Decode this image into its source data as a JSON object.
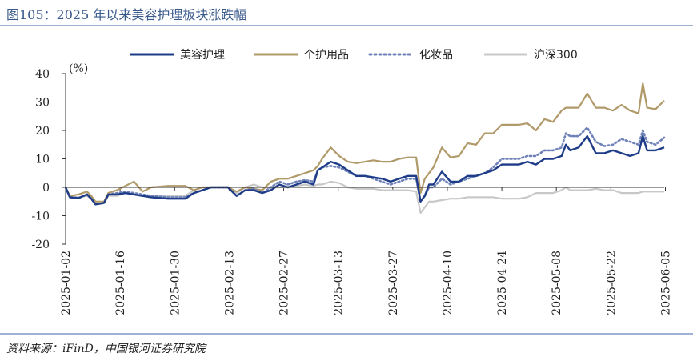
{
  "header": {
    "title": "图105：2025 年以来美容护理板块涨跌幅"
  },
  "footer": {
    "source": "资料来源：iFinD，中国银河证券研究院"
  },
  "chart_data": {
    "type": "line",
    "ylabel": "(%)",
    "ylim": [
      -20,
      40
    ],
    "yticks": [
      40,
      30,
      20,
      10,
      0,
      -10,
      -20
    ],
    "xlabels": [
      "2025-01-02",
      "2025-01-16",
      "2025-01-30",
      "2025-02-13",
      "2025-02-27",
      "2025-03-13",
      "2025-03-27",
      "2025-04-10",
      "2025-04-24",
      "2025-05-08",
      "2025-05-22",
      "2025-06-05"
    ],
    "legend_position": "top",
    "colors": {
      "neg_tick": "#cc0000",
      "axis": "#333333"
    },
    "series": [
      {
        "name": "美容护理",
        "color": "#1f3c88",
        "style": "solid",
        "points": [
          [
            0,
            0
          ],
          [
            0.5,
            -3.5
          ],
          [
            1.5,
            -3.8
          ],
          [
            2.5,
            -2.5
          ],
          [
            3,
            -4
          ],
          [
            3.5,
            -6
          ],
          [
            4.5,
            -5.5
          ],
          [
            5,
            -2.5
          ],
          [
            6,
            -2.5
          ],
          [
            7,
            -2
          ],
          [
            8,
            -2.5
          ],
          [
            9,
            -3
          ],
          [
            10,
            -3.5
          ],
          [
            12,
            -4
          ],
          [
            14,
            -4
          ],
          [
            15,
            -2
          ],
          [
            16,
            -1
          ],
          [
            17,
            0
          ],
          [
            18,
            0
          ],
          [
            19,
            0
          ],
          [
            20,
            -3
          ],
          [
            21,
            -1
          ],
          [
            22,
            -1
          ],
          [
            23,
            -2
          ],
          [
            24,
            -1
          ],
          [
            25,
            1
          ],
          [
            26,
            0
          ],
          [
            27,
            1
          ],
          [
            28,
            2
          ],
          [
            29,
            1
          ],
          [
            29.5,
            6
          ],
          [
            30,
            7
          ],
          [
            31,
            9
          ],
          [
            32,
            8
          ],
          [
            33,
            6
          ],
          [
            34,
            4
          ],
          [
            35,
            4
          ],
          [
            36,
            3.5
          ],
          [
            37,
            3
          ],
          [
            38,
            2
          ],
          [
            39,
            3
          ],
          [
            40,
            4
          ],
          [
            41,
            4
          ],
          [
            41.5,
            -5
          ],
          [
            42,
            -3
          ],
          [
            42.5,
            1
          ],
          [
            43,
            1
          ],
          [
            44,
            5.5
          ],
          [
            45,
            2
          ],
          [
            46,
            2
          ],
          [
            47,
            4
          ],
          [
            48,
            4
          ],
          [
            49,
            5
          ],
          [
            50,
            6
          ],
          [
            51,
            8
          ],
          [
            53,
            8
          ],
          [
            54,
            9
          ],
          [
            55,
            8
          ],
          [
            56,
            10
          ],
          [
            57,
            10
          ],
          [
            58,
            11
          ],
          [
            58.5,
            15
          ],
          [
            59,
            13
          ],
          [
            60,
            14
          ],
          [
            61,
            18
          ],
          [
            62,
            12
          ],
          [
            63,
            12
          ],
          [
            64,
            13
          ],
          [
            65,
            12
          ],
          [
            66,
            11
          ],
          [
            67,
            12
          ],
          [
            67.5,
            18
          ],
          [
            68,
            13
          ],
          [
            69,
            13
          ],
          [
            70,
            14
          ]
        ]
      },
      {
        "name": "个护用品",
        "color": "#b09a6a",
        "style": "solid",
        "points": [
          [
            0,
            0
          ],
          [
            0.5,
            -3
          ],
          [
            1.5,
            -2.5
          ],
          [
            2.5,
            -1.5
          ],
          [
            3,
            -3
          ],
          [
            3.5,
            -5
          ],
          [
            4.5,
            -5
          ],
          [
            5,
            -2
          ],
          [
            6,
            -1
          ],
          [
            7,
            0.5
          ],
          [
            8,
            2
          ],
          [
            9,
            -1.5
          ],
          [
            10,
            0
          ],
          [
            12,
            0.5
          ],
          [
            14,
            0.5
          ],
          [
            15,
            -1
          ],
          [
            16,
            0
          ],
          [
            17,
            0
          ],
          [
            18,
            0
          ],
          [
            19,
            0
          ],
          [
            20,
            -1.5
          ],
          [
            21,
            0
          ],
          [
            22,
            -0.5
          ],
          [
            23,
            -1
          ],
          [
            24,
            2
          ],
          [
            25,
            3
          ],
          [
            26,
            3
          ],
          [
            27,
            4
          ],
          [
            28,
            5
          ],
          [
            29,
            6
          ],
          [
            29.5,
            7.5
          ],
          [
            30,
            10
          ],
          [
            31,
            14
          ],
          [
            32,
            11
          ],
          [
            33,
            9
          ],
          [
            34,
            8.5
          ],
          [
            35,
            9
          ],
          [
            36,
            9.5
          ],
          [
            37,
            9
          ],
          [
            38,
            9
          ],
          [
            39,
            10
          ],
          [
            40,
            10.5
          ],
          [
            41,
            10.5
          ],
          [
            41.5,
            -2
          ],
          [
            42,
            3
          ],
          [
            42.5,
            5
          ],
          [
            43,
            7
          ],
          [
            44,
            14
          ],
          [
            45,
            10.5
          ],
          [
            46,
            11
          ],
          [
            47,
            15.5
          ],
          [
            48,
            15
          ],
          [
            49,
            19
          ],
          [
            50,
            19
          ],
          [
            51,
            22
          ],
          [
            53,
            22
          ],
          [
            54,
            22.5
          ],
          [
            55,
            20
          ],
          [
            56,
            24
          ],
          [
            57,
            23
          ],
          [
            58,
            27
          ],
          [
            58.5,
            28
          ],
          [
            59,
            28
          ],
          [
            60,
            28
          ],
          [
            61,
            33
          ],
          [
            62,
            28
          ],
          [
            63,
            28
          ],
          [
            64,
            27
          ],
          [
            65,
            29
          ],
          [
            66,
            27
          ],
          [
            67,
            26
          ],
          [
            67.5,
            36.5
          ],
          [
            68,
            28
          ],
          [
            69,
            27.5
          ],
          [
            70,
            30.5
          ]
        ]
      },
      {
        "name": "化妆品",
        "color": "#6f82b8",
        "style": "dotted",
        "points": [
          [
            0,
            0
          ],
          [
            0.5,
            -3.5
          ],
          [
            1.5,
            -3.8
          ],
          [
            2.5,
            -2.5
          ],
          [
            3,
            -4
          ],
          [
            3.5,
            -6
          ],
          [
            4.5,
            -5.5
          ],
          [
            5,
            -2.5
          ],
          [
            6,
            -2
          ],
          [
            7,
            -1.5
          ],
          [
            8,
            -2
          ],
          [
            9,
            -2.5
          ],
          [
            10,
            -3
          ],
          [
            12,
            -3.5
          ],
          [
            14,
            -3.5
          ],
          [
            15,
            -2
          ],
          [
            16,
            -1
          ],
          [
            17,
            0
          ],
          [
            18,
            0
          ],
          [
            19,
            0
          ],
          [
            20,
            -3
          ],
          [
            21,
            -1
          ],
          [
            22,
            -0.5
          ],
          [
            23,
            -2
          ],
          [
            24,
            0
          ],
          [
            25,
            2
          ],
          [
            26,
            1
          ],
          [
            27,
            2
          ],
          [
            28,
            2.5
          ],
          [
            29,
            2
          ],
          [
            29.5,
            6
          ],
          [
            30,
            7
          ],
          [
            31,
            7.5
          ],
          [
            32,
            7
          ],
          [
            33,
            5.5
          ],
          [
            34,
            4
          ],
          [
            35,
            4
          ],
          [
            36,
            3
          ],
          [
            37,
            2
          ],
          [
            38,
            1
          ],
          [
            39,
            2
          ],
          [
            40,
            3
          ],
          [
            41,
            3
          ],
          [
            41.5,
            -5
          ],
          [
            42,
            -3
          ],
          [
            42.5,
            0
          ],
          [
            43,
            0
          ],
          [
            44,
            3
          ],
          [
            45,
            1
          ],
          [
            46,
            2
          ],
          [
            47,
            3
          ],
          [
            48,
            4
          ],
          [
            49,
            5
          ],
          [
            50,
            7
          ],
          [
            51,
            10
          ],
          [
            53,
            10
          ],
          [
            54,
            11
          ],
          [
            55,
            11
          ],
          [
            56,
            13
          ],
          [
            57,
            13
          ],
          [
            58,
            14
          ],
          [
            58.5,
            19
          ],
          [
            59,
            18
          ],
          [
            60,
            18
          ],
          [
            61,
            21
          ],
          [
            62,
            16
          ],
          [
            63,
            14.5
          ],
          [
            64,
            15
          ],
          [
            65,
            17
          ],
          [
            66,
            16
          ],
          [
            67,
            15
          ],
          [
            67.5,
            20
          ],
          [
            68,
            16
          ],
          [
            69,
            15
          ],
          [
            70,
            17.5
          ]
        ]
      },
      {
        "name": "沪深300",
        "color": "#c8c8c8",
        "style": "solid",
        "points": [
          [
            0,
            0
          ],
          [
            0.5,
            -3
          ],
          [
            1.5,
            -3.5
          ],
          [
            2.5,
            -3
          ],
          [
            3,
            -4
          ],
          [
            3.5,
            -6
          ],
          [
            4.5,
            -5.5
          ],
          [
            5,
            -3
          ],
          [
            6,
            -3
          ],
          [
            7,
            -2
          ],
          [
            8,
            -2.5
          ],
          [
            9,
            -3
          ],
          [
            10,
            -3
          ],
          [
            12,
            -3
          ],
          [
            14,
            -3
          ],
          [
            15,
            -1
          ],
          [
            16,
            0
          ],
          [
            17,
            0
          ],
          [
            18,
            0
          ],
          [
            19,
            0
          ],
          [
            20,
            -2
          ],
          [
            21,
            0
          ],
          [
            22,
            1
          ],
          [
            23,
            0
          ],
          [
            24,
            0
          ],
          [
            25,
            0
          ],
          [
            26,
            0
          ],
          [
            27,
            0.5
          ],
          [
            28,
            1
          ],
          [
            29,
            0.5
          ],
          [
            29.5,
            1
          ],
          [
            30,
            1
          ],
          [
            31,
            2
          ],
          [
            32,
            1.5
          ],
          [
            33,
            0
          ],
          [
            34,
            -0.5
          ],
          [
            35,
            -0.5
          ],
          [
            36,
            -0.5
          ],
          [
            37,
            -1
          ],
          [
            38,
            -1
          ],
          [
            39,
            -1
          ],
          [
            40,
            -1
          ],
          [
            41,
            -1.5
          ],
          [
            41.5,
            -9
          ],
          [
            42,
            -7
          ],
          [
            42.5,
            -5
          ],
          [
            43,
            -5
          ],
          [
            44,
            -4.5
          ],
          [
            45,
            -4
          ],
          [
            46,
            -4
          ],
          [
            47,
            -3.5
          ],
          [
            48,
            -3.5
          ],
          [
            49,
            -3.5
          ],
          [
            50,
            -3.5
          ],
          [
            51,
            -4
          ],
          [
            53,
            -4
          ],
          [
            54,
            -3.5
          ],
          [
            55,
            -2
          ],
          [
            56,
            -2
          ],
          [
            57,
            -2
          ],
          [
            58,
            -1
          ],
          [
            58.5,
            0
          ],
          [
            59,
            -1
          ],
          [
            60,
            -1
          ],
          [
            61,
            -1
          ],
          [
            62,
            -0.5
          ],
          [
            63,
            -1
          ],
          [
            64,
            -1
          ],
          [
            65,
            -2
          ],
          [
            66,
            -2
          ],
          [
            67,
            -2
          ],
          [
            67.5,
            -1.5
          ],
          [
            68,
            -1.5
          ],
          [
            69,
            -1.5
          ],
          [
            70,
            -1.5
          ]
        ]
      }
    ]
  }
}
